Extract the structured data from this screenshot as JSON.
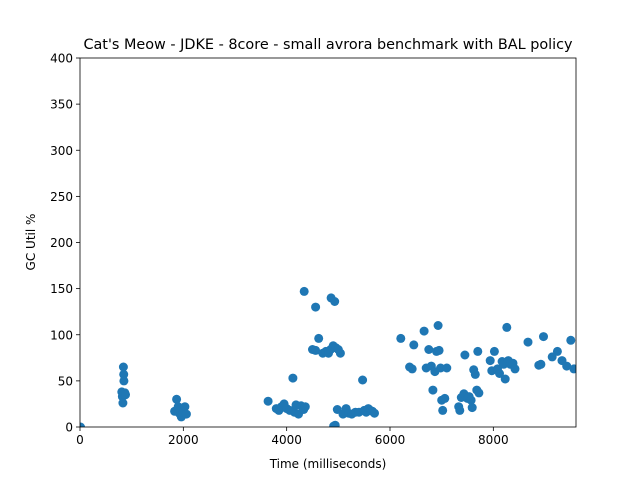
{
  "chart_data": {
    "type": "scatter",
    "title": "Cat's Meow - JDKE - 8core -  small avrora benchmark with BAL policy",
    "xlabel": "Time (milliseconds)",
    "ylabel": "GC Util %",
    "xlim": [
      0,
      9600
    ],
    "ylim": [
      0,
      400
    ],
    "xticks": [
      0,
      2000,
      4000,
      6000,
      8000
    ],
    "yticks": [
      0,
      50,
      100,
      150,
      200,
      250,
      300,
      350,
      400
    ],
    "grid": false,
    "marker_color": "#1f77b4",
    "series": [
      {
        "points": [
          [
            10,
            0
          ],
          [
            810,
            38
          ],
          [
            820,
            33
          ],
          [
            830,
            26
          ],
          [
            840,
            65
          ],
          [
            845,
            57
          ],
          [
            850,
            50
          ],
          [
            860,
            36
          ],
          [
            870,
            37
          ],
          [
            880,
            35
          ],
          [
            1830,
            17
          ],
          [
            1870,
            30
          ],
          [
            1900,
            22
          ],
          [
            1920,
            15
          ],
          [
            1940,
            19
          ],
          [
            1960,
            11
          ],
          [
            1980,
            13
          ],
          [
            2000,
            16
          ],
          [
            2030,
            22
          ],
          [
            2060,
            14
          ],
          [
            3640,
            28
          ],
          [
            3800,
            20
          ],
          [
            3850,
            18
          ],
          [
            3900,
            22
          ],
          [
            3950,
            25
          ],
          [
            4000,
            20
          ],
          [
            4060,
            18
          ],
          [
            4120,
            53
          ],
          [
            4150,
            16
          ],
          [
            4180,
            24
          ],
          [
            4230,
            14
          ],
          [
            4280,
            23
          ],
          [
            4330,
            19
          ],
          [
            4360,
            22
          ],
          [
            4340,
            147
          ],
          [
            4560,
            130
          ],
          [
            4620,
            96
          ],
          [
            4500,
            84
          ],
          [
            4560,
            83
          ],
          [
            4700,
            80
          ],
          [
            4760,
            82
          ],
          [
            4810,
            80
          ],
          [
            4850,
            84
          ],
          [
            4860,
            140
          ],
          [
            4900,
            88
          ],
          [
            4930,
            136
          ],
          [
            4950,
            86
          ],
          [
            5000,
            84
          ],
          [
            5040,
            80
          ],
          [
            4910,
            1
          ],
          [
            4940,
            2
          ],
          [
            4980,
            19
          ],
          [
            5090,
            14
          ],
          [
            5150,
            20
          ],
          [
            5200,
            15
          ],
          [
            5260,
            14
          ],
          [
            5330,
            16
          ],
          [
            5400,
            16
          ],
          [
            5470,
            51
          ],
          [
            5500,
            18
          ],
          [
            5540,
            16
          ],
          [
            5580,
            20
          ],
          [
            5620,
            18
          ],
          [
            5660,
            17
          ],
          [
            5700,
            15
          ],
          [
            6210,
            96
          ],
          [
            6380,
            65
          ],
          [
            6430,
            63
          ],
          [
            6460,
            89
          ],
          [
            6660,
            104
          ],
          [
            6700,
            64
          ],
          [
            6750,
            84
          ],
          [
            6800,
            66
          ],
          [
            6830,
            40
          ],
          [
            6870,
            60
          ],
          [
            6900,
            82
          ],
          [
            6930,
            110
          ],
          [
            6950,
            83
          ],
          [
            6980,
            64
          ],
          [
            7000,
            29
          ],
          [
            7020,
            18
          ],
          [
            7060,
            31
          ],
          [
            7100,
            64
          ],
          [
            7330,
            22
          ],
          [
            7350,
            18
          ],
          [
            7380,
            32
          ],
          [
            7430,
            36
          ],
          [
            7450,
            78
          ],
          [
            7500,
            31
          ],
          [
            7530,
            33
          ],
          [
            7570,
            29
          ],
          [
            7590,
            21
          ],
          [
            7620,
            62
          ],
          [
            7650,
            57
          ],
          [
            7680,
            40
          ],
          [
            7700,
            82
          ],
          [
            7720,
            37
          ],
          [
            7940,
            72
          ],
          [
            7970,
            61
          ],
          [
            8020,
            82
          ],
          [
            8080,
            63
          ],
          [
            8120,
            58
          ],
          [
            8170,
            71
          ],
          [
            8200,
            68
          ],
          [
            8230,
            52
          ],
          [
            8260,
            108
          ],
          [
            8290,
            72
          ],
          [
            8330,
            68
          ],
          [
            8380,
            69
          ],
          [
            8420,
            63
          ],
          [
            8670,
            92
          ],
          [
            8880,
            67
          ],
          [
            8920,
            68
          ],
          [
            8970,
            98
          ],
          [
            9140,
            76
          ],
          [
            9240,
            82
          ],
          [
            9330,
            72
          ],
          [
            9420,
            66
          ],
          [
            9500,
            94
          ],
          [
            9560,
            63
          ]
        ]
      }
    ]
  }
}
